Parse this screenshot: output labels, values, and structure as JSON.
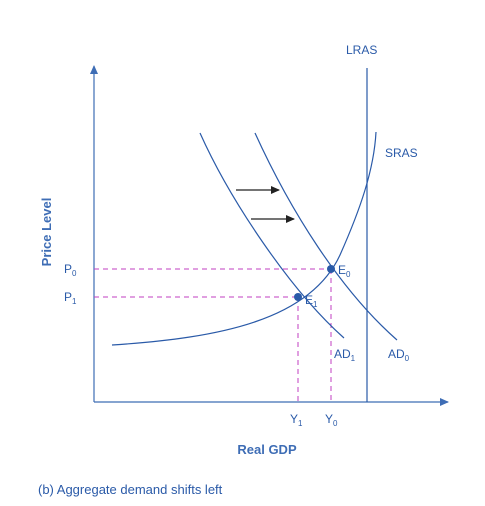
{
  "figure": {
    "caption": "(b) Aggregate demand shifts left",
    "x_axis_label": "Real GDP",
    "y_axis_label": "Price Level",
    "curves": {
      "lras": "LRAS",
      "sras": "SRAS",
      "ad0": {
        "main": "AD",
        "sub": "0"
      },
      "ad1": {
        "main": "AD",
        "sub": "1"
      }
    },
    "points": {
      "e0": {
        "main": "E",
        "sub": "0"
      },
      "e1": {
        "main": "E",
        "sub": "1"
      }
    },
    "ticks": {
      "p0": {
        "main": "P",
        "sub": "0"
      },
      "p1": {
        "main": "P",
        "sub": "1"
      },
      "y1": {
        "main": "Y",
        "sub": "1"
      },
      "y0": {
        "main": "Y",
        "sub": "0"
      }
    },
    "colors": {
      "curve": "#2a5aa8",
      "axis": "#3e6db5",
      "dashed_guides": "#c23fc2",
      "shift_arrows": "#222222"
    }
  }
}
